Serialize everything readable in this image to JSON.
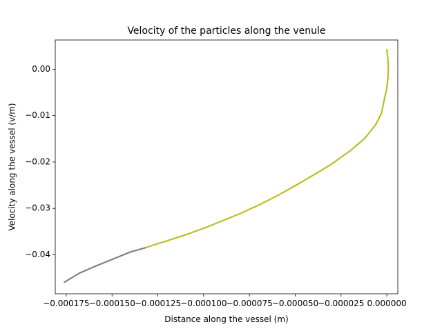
{
  "chart_data": {
    "type": "line",
    "title": "Velocity of the particles along the venule",
    "xlabel": "Distance along the vessel (m)",
    "ylabel": "Velocity along the vessel (v/m)",
    "xlim": [
      -0.000181,
      6e-06
    ],
    "ylim": [
      -0.0484,
      0.0063
    ],
    "x_ticks": [
      -0.000175,
      -0.00015,
      -0.000125,
      -0.0001,
      -7.5e-05,
      -5e-05,
      -2.5e-05,
      0.0
    ],
    "x_tick_labels": [
      "−0.000175",
      "−0.000150",
      "−0.000125",
      "−0.000100",
      "−0.000075",
      "−0.000050",
      "−0.000025",
      "0.000000"
    ],
    "y_ticks": [
      0.0,
      -0.01,
      -0.02,
      -0.03,
      -0.04
    ],
    "y_tick_labels": [
      "0.00",
      "−0.01",
      "−0.02",
      "−0.03",
      "−0.04"
    ],
    "grid": false,
    "legend": "none",
    "series": [
      {
        "color": "#bcbd22",
        "x": [
          0.0,
          5e-07,
          8e-07,
          7e-07,
          0.0,
          -1.5e-06,
          -3e-06,
          -6e-06,
          -1.2e-05,
          -2e-05,
          -3e-05,
          -4e-05,
          -5e-05,
          -6e-05,
          -7e-05,
          -8e-05,
          -9e-05,
          -0.0001,
          -0.00011,
          -0.00012,
          -0.000125,
          -0.000132
        ],
        "y": [
          0.0042,
          0.0025,
          0.0005,
          -0.0015,
          -0.004,
          -0.0068,
          -0.0096,
          -0.0119,
          -0.0149,
          -0.0176,
          -0.0204,
          -0.0228,
          -0.0251,
          -0.0273,
          -0.0293,
          -0.0311,
          -0.0327,
          -0.0343,
          -0.0357,
          -0.037,
          -0.0376,
          -0.0385
        ]
      },
      {
        "color": "#8c7a8a",
        "x": [
          -0.000132,
          -0.00014,
          -0.00015,
          -0.00016,
          -0.000168,
          -0.000176
        ],
        "y": [
          -0.0385,
          -0.0394,
          -0.041,
          -0.0426,
          -0.044,
          -0.0459
        ]
      }
    ]
  }
}
